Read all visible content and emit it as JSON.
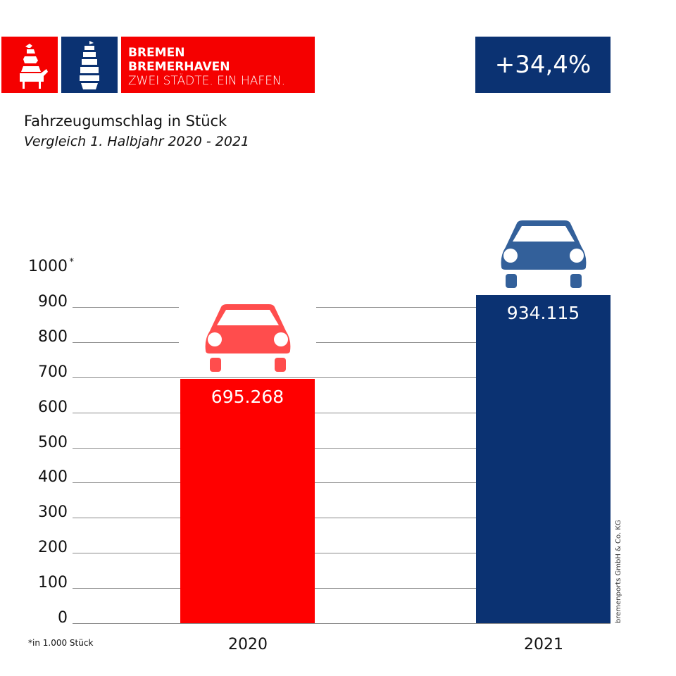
{
  "logo": {
    "line1": "BREMEN",
    "line2": "BREMERHAVEN",
    "line3": "ZWEI STÄDTE. EIN HAFEN.",
    "colors": {
      "red": "#f50000",
      "blue": "#0b3272"
    }
  },
  "change_badge": "+34,4%",
  "footnote": "*in 1.000 Stück",
  "source": "bremenports GmbH & Co. KG",
  "chart_data": {
    "type": "bar",
    "title": "Fahrzeugumschlag in Stück",
    "subtitle": "Vergleich 1. Halbjahr 2020 - 2021",
    "categories": [
      "2020",
      "2021"
    ],
    "values": [
      695.268,
      934.115
    ],
    "value_labels": [
      "695.268",
      "934.115"
    ],
    "bar_colors": [
      "#ff0000",
      "#0b3272"
    ],
    "icon_colors": [
      "#ff4d4d",
      "#33609a"
    ],
    "icon": "car-icon",
    "ylim": [
      0,
      1000
    ],
    "yticks": [
      "0",
      "100",
      "200",
      "300",
      "400",
      "500",
      "600",
      "700",
      "800",
      "900",
      "1000"
    ],
    "ytick_top_marker": "*",
    "grid": true
  }
}
